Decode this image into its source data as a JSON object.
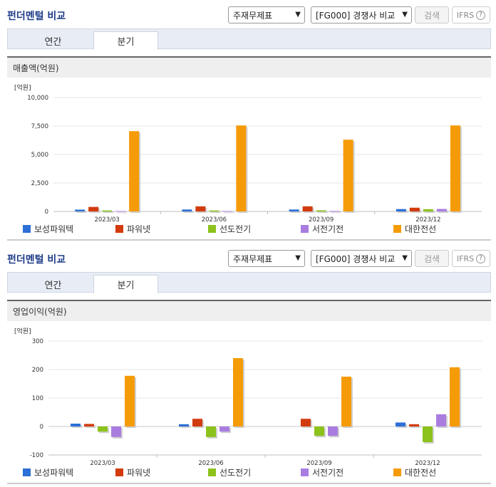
{
  "controls": {
    "statement_select": "주재무제표",
    "peer_select": "[FG000] 경쟁사 비교",
    "search_label": "검색",
    "ifrs_label": "IFRS",
    "help_label": "?"
  },
  "tabs": [
    "연간",
    "분기"
  ],
  "active_tab": 1,
  "colors": {
    "보성파워텍": "#2c6fd6",
    "파워넷": "#d23b0e",
    "선도전기": "#8cc21c",
    "서전기전": "#a97de0",
    "대한전선": "#f59b08"
  },
  "sections": [
    {
      "title": "펀더멘털 비교",
      "chart_title": "매출액(억원)",
      "unit": "[억원]",
      "chart_data": {
        "type": "bar",
        "title": "매출액(억원)",
        "categories": [
          "2023/03",
          "2023/06",
          "2023/09",
          "2023/12"
        ],
        "ylim": [
          0,
          10000
        ],
        "yticks": [
          0,
          2500,
          5000,
          7500,
          10000
        ],
        "ytick_labels": [
          "0",
          "2,500",
          "5,000",
          "7,500",
          "10,000"
        ],
        "series": [
          {
            "name": "보성파워텍",
            "values": [
              160,
              170,
              170,
              210
            ]
          },
          {
            "name": "파워넷",
            "values": [
              400,
              450,
              450,
              330
            ]
          },
          {
            "name": "선도전기",
            "values": [
              90,
              90,
              100,
              200
            ]
          },
          {
            "name": "서전기전",
            "values": [
              40,
              40,
              50,
              220
            ]
          },
          {
            "name": "대한전선",
            "values": [
              7050,
              7550,
              6300,
              7550
            ]
          }
        ]
      }
    },
    {
      "title": "펀더멘털 비교",
      "chart_title": "영업이익(억원)",
      "unit": "[억원]",
      "chart_data": {
        "type": "bar",
        "title": "영업이익(억원)",
        "categories": [
          "2023/03",
          "2023/06",
          "2023/09",
          "2023/12"
        ],
        "ylim": [
          -100,
          300
        ],
        "yticks": [
          -100,
          0,
          100,
          200,
          300
        ],
        "ytick_labels": [
          "-100",
          "0",
          "100",
          "200",
          "300"
        ],
        "series": [
          {
            "name": "보성파워텍",
            "values": [
              10,
              8,
              0,
              14
            ]
          },
          {
            "name": "파워넷",
            "values": [
              9,
              27,
              27,
              8
            ]
          },
          {
            "name": "선도전기",
            "values": [
              -18,
              -37,
              -33,
              -55
            ]
          },
          {
            "name": "서전기전",
            "values": [
              -37,
              -18,
              -33,
              43
            ]
          },
          {
            "name": "대한전선",
            "values": [
              178,
              240,
              175,
              208
            ]
          }
        ]
      }
    }
  ]
}
